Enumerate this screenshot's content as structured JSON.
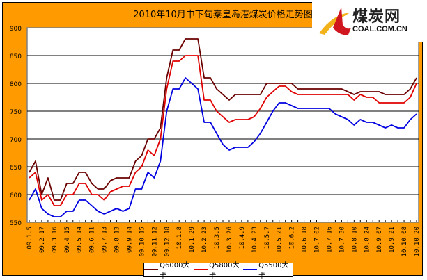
{
  "chart_data": {
    "type": "line",
    "title": "2010年10月中下旬秦皇岛港煤炭价格走势图",
    "xlabel": "",
    "ylabel": "",
    "ylim": [
      550,
      900
    ],
    "yticks": [
      "550",
      "600",
      "650",
      "700",
      "750",
      "800",
      "850",
      "900"
    ],
    "x_tick_labels": [
      "09.1.5",
      "09.2.17",
      "09.3.16",
      "09.4.15",
      "09.5.14",
      "09.6.11",
      "09.7.13",
      "09.8.13",
      "09.9.14",
      "09.10.15",
      "09.11.12",
      "09.12.18",
      "10.1.8",
      "10.1.29",
      "10.2.23",
      "10.3.5",
      "10.3.26",
      "10.4.9",
      "10.4.23",
      "10.5.7",
      "10.5.21",
      "10.6.2",
      "10.6.18",
      "10.7.02",
      "10.7.16",
      "10.7.30",
      "10.8.10",
      "10.8.24",
      "10.9.07",
      "10.9.21",
      "10.10.08",
      "10.10.20"
    ],
    "grid": true,
    "legend_position": "bottom",
    "series": [
      {
        "name": "Q6000大卡",
        "color": "#6B0000",
        "values": [
          640,
          660,
          600,
          630,
          590,
          590,
          620,
          620,
          640,
          640,
          620,
          610,
          610,
          625,
          630,
          630,
          630,
          660,
          670,
          700,
          700,
          720,
          810,
          860,
          860,
          880,
          880,
          880,
          810,
          810,
          790,
          780,
          770,
          780,
          780,
          780,
          780,
          780,
          800,
          800,
          800,
          800,
          800,
          790,
          790,
          790,
          790,
          790,
          790,
          790,
          790,
          785,
          780,
          785,
          785,
          785,
          785,
          780,
          780,
          780,
          780,
          790,
          810
        ]
      },
      {
        "name": "Q5800大卡",
        "color": "#E00000",
        "values": [
          630,
          640,
          590,
          600,
          580,
          580,
          600,
          600,
          620,
          620,
          600,
          600,
          590,
          605,
          610,
          615,
          615,
          640,
          650,
          680,
          670,
          700,
          790,
          840,
          840,
          850,
          850,
          850,
          770,
          770,
          750,
          740,
          730,
          735,
          735,
          735,
          740,
          755,
          775,
          785,
          795,
          795,
          785,
          780,
          780,
          780,
          780,
          780,
          780,
          780,
          780,
          780,
          770,
          780,
          775,
          775,
          765,
          765,
          765,
          765,
          765,
          775,
          800
        ]
      },
      {
        "name": "Q5500大卡",
        "color": "#0000E0",
        "values": [
          590,
          610,
          575,
          565,
          560,
          560,
          570,
          570,
          590,
          590,
          580,
          570,
          565,
          570,
          575,
          570,
          575,
          610,
          610,
          640,
          630,
          660,
          750,
          790,
          790,
          810,
          800,
          790,
          730,
          730,
          710,
          690,
          680,
          685,
          685,
          685,
          695,
          710,
          730,
          750,
          765,
          765,
          760,
          755,
          755,
          755,
          755,
          755,
          755,
          745,
          740,
          735,
          725,
          735,
          730,
          730,
          725,
          720,
          725,
          720,
          720,
          735,
          745
        ]
      }
    ]
  },
  "logo": {
    "cn": "煤炭网",
    "en": "COAL.COM.CN"
  },
  "colors": {
    "background": "#FF9A00",
    "plot": "#FFFFFF"
  }
}
